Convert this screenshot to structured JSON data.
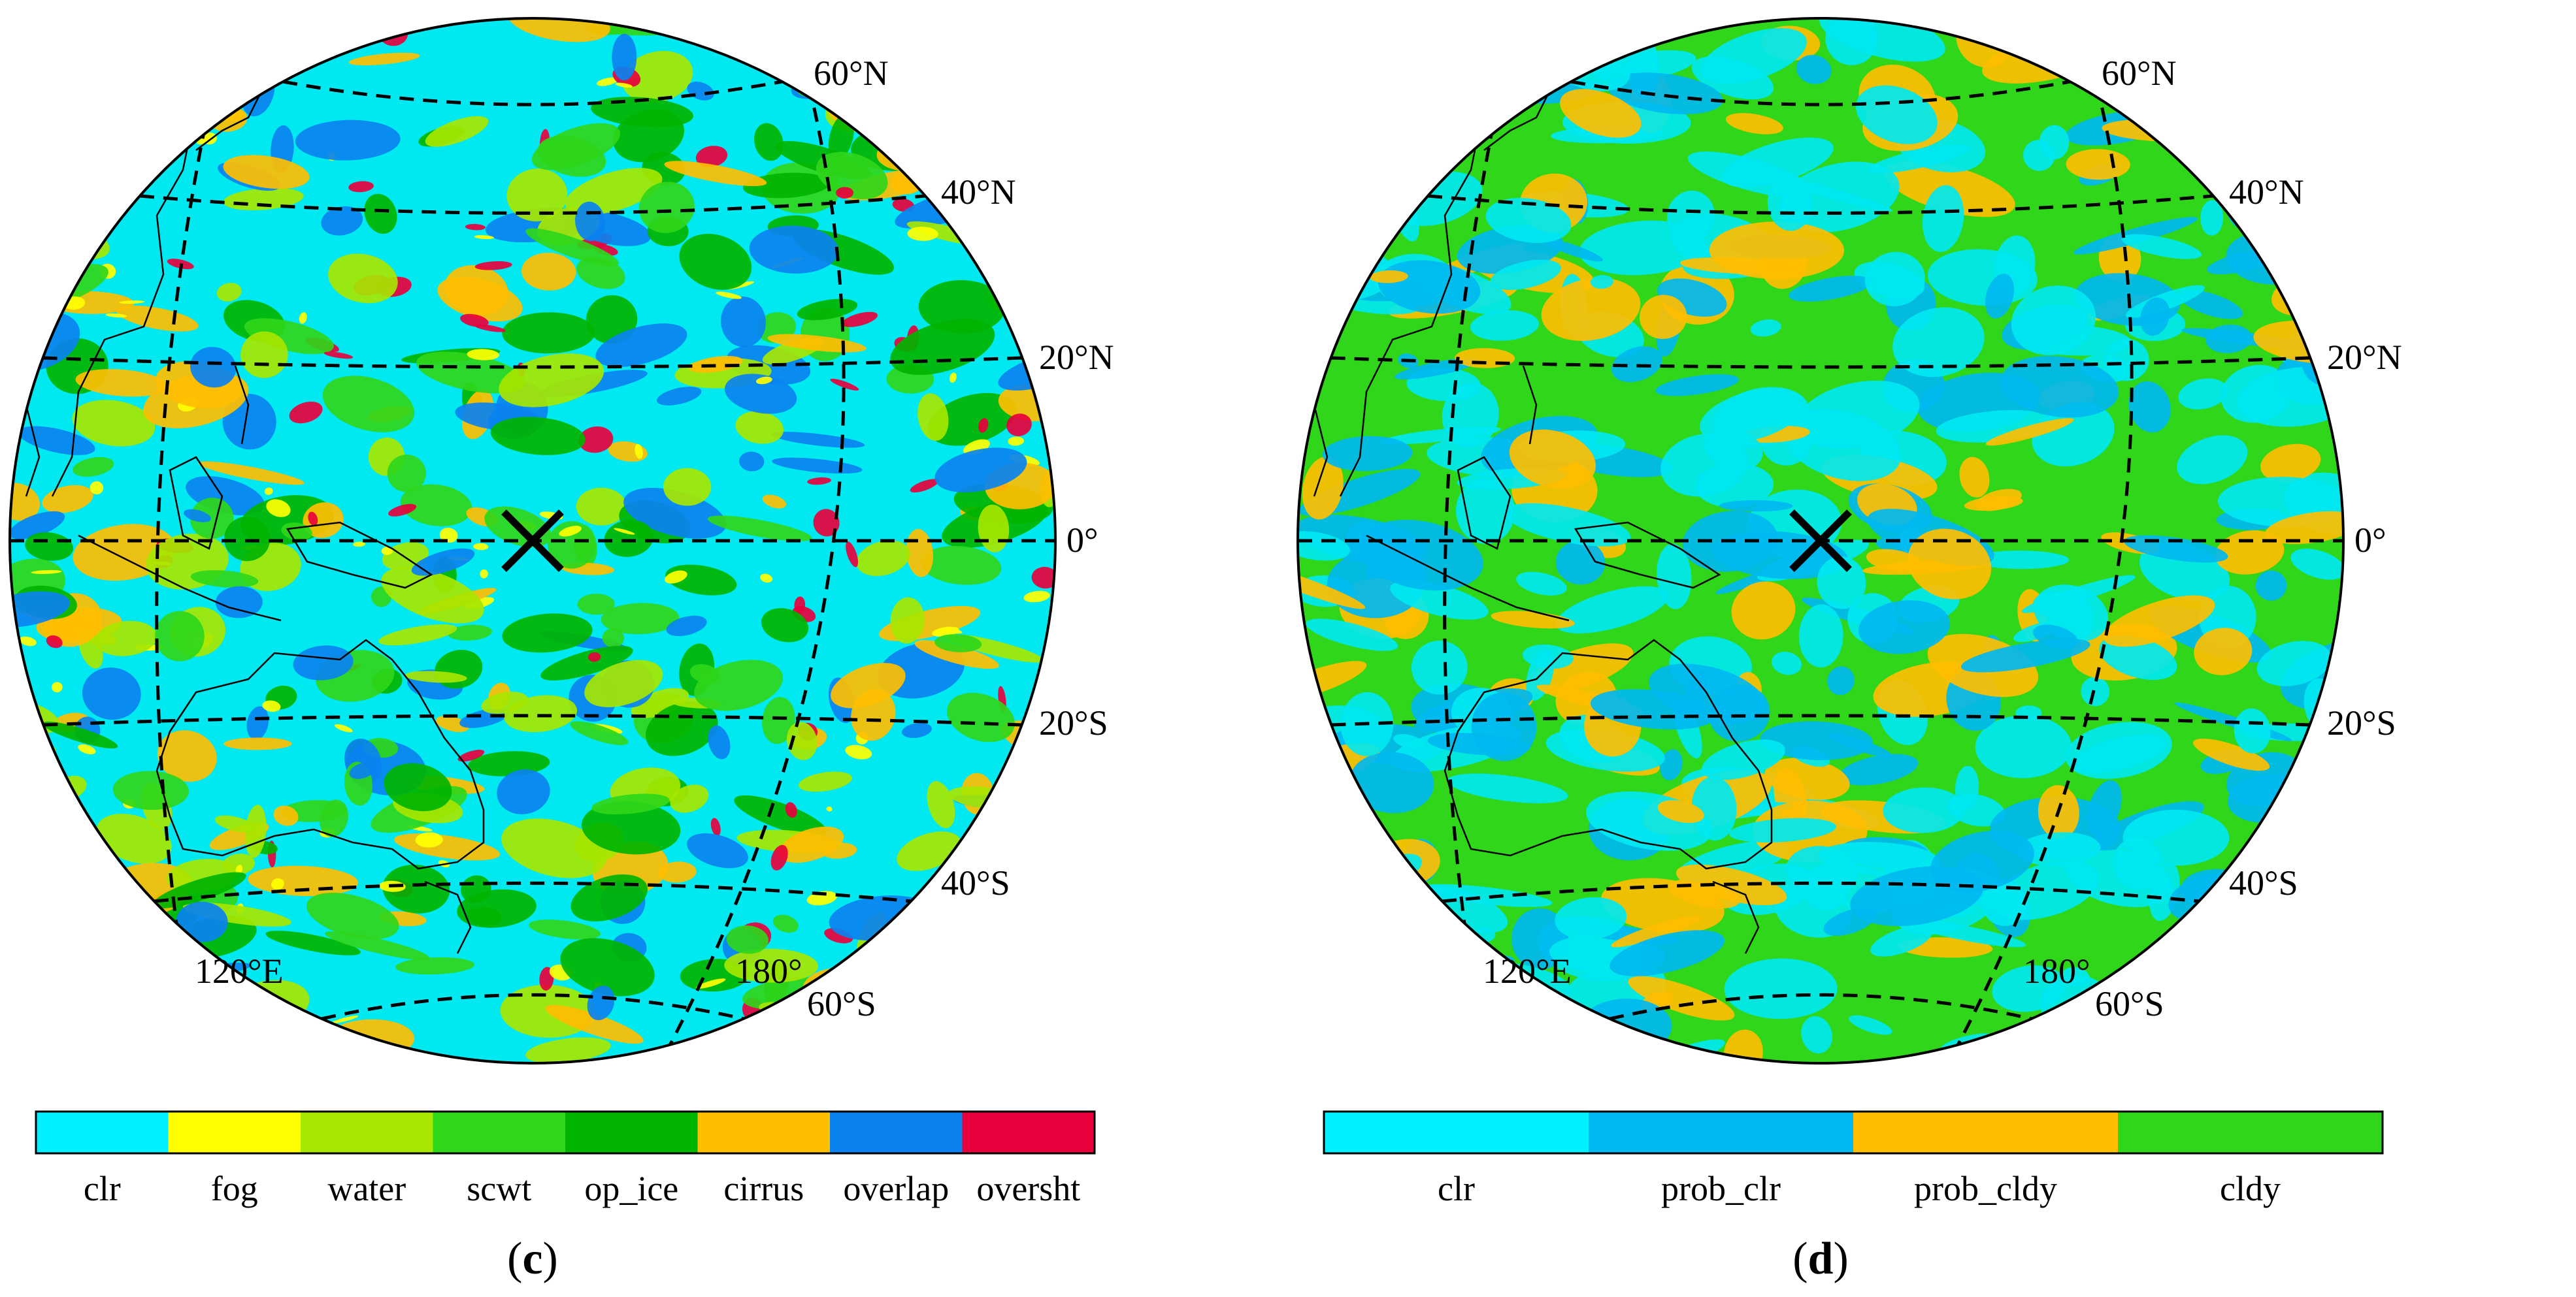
{
  "panels": [
    {
      "id": "c",
      "letter": "c",
      "lat_labels": [
        "60°N",
        "40°N",
        "20°N",
        "0°",
        "20°S",
        "40°S",
        "60°S"
      ],
      "lon_labels": [
        "120°E",
        "180°"
      ],
      "marker": "×",
      "colorbar": {
        "categories": [
          "clr",
          "fog",
          "water",
          "scwt",
          "op_ice",
          "cirrus",
          "overlap",
          "oversht"
        ],
        "colors": [
          "#00F0FF",
          "#FFFF00",
          "#A6E600",
          "#2FD61A",
          "#00B400",
          "#FFBE00",
          "#0A82F0",
          "#E8003C"
        ]
      },
      "map_palette": {
        "background": "#00E8F0",
        "blobs": [
          "#2FD61A",
          "#A6E600",
          "#FFBE00",
          "#0A82F0",
          "#00B400",
          "#E8003C",
          "#FFFF00"
        ]
      }
    },
    {
      "id": "d",
      "letter": "d",
      "lat_labels": [
        "60°N",
        "40°N",
        "20°N",
        "0°",
        "20°S",
        "40°S",
        "60°S"
      ],
      "lon_labels": [
        "120°E",
        "180°"
      ],
      "marker": "×",
      "colorbar": {
        "categories": [
          "clr",
          "prob_clr",
          "prob_cldy",
          "cldy"
        ],
        "colors": [
          "#00F0FF",
          "#00B8F0",
          "#FFBE00",
          "#2FD61A"
        ]
      },
      "map_palette": {
        "background": "#2FD61A",
        "blobs": [
          "#00E8F0",
          "#00E8F0",
          "#00B8F0",
          "#FFBE00"
        ]
      }
    }
  ]
}
